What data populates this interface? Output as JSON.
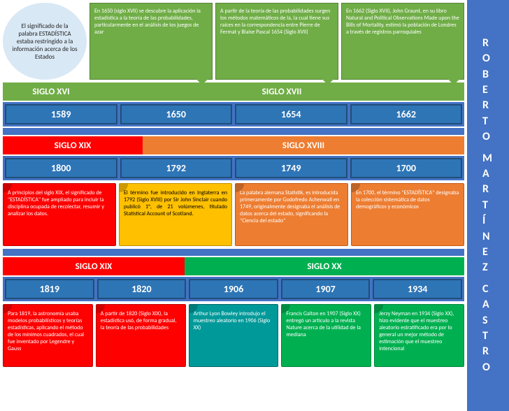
{
  "author": "ROBERTO MARTÍNEZ CASTRO",
  "circle_note": "El significado de la palabra ESTADÍSTICA estaba restringido a la información acerca de los Estados",
  "top_notes": [
    "En 1650 (siglo XVII) se descubre la aplicación la estadística a la teoría de las probabilidades, particularmente en el análisis de los juegos de azar",
    "A partir de la teoría de las probabilidades surgen los métodos matemáticos de la, la cual tiene sus raíces en la correspondencia entre Pierre de Fermat y Blaise Pascal 1654 (Siglo XVII)",
    "En 1662 (Siglo XVII), John Graunt, en su libro Natural and Political Observations Made upon the Bills of Mortality, estimó la población de Londres a través de registros parroquiales"
  ],
  "era1": {
    "left": "SIGLO XVI",
    "right": "SIGLO XVII",
    "left_color": "#70ad47",
    "right_color": "#70ad47"
  },
  "years1": [
    "1589",
    "1650",
    "1654",
    "1662"
  ],
  "era2": {
    "left": "SIGLO XIX",
    "right": "SIGLO XVIII",
    "left_color": "#ff0000",
    "right_color": "#ed7d31"
  },
  "years2": [
    "1800",
    "1792",
    "1749",
    "1700"
  ],
  "scrolls2": [
    {
      "cls": "red",
      "text": "A principios del siglo XIX, el significado de \"ESTADÍSTICA\" fue ampliado para incluir la disciplina ocupada de recolectar, resumir y analizar los datos."
    },
    {
      "cls": "yellow",
      "text": "El término fue introducido en Inglaterra en 1792 (Siglo XVIII) por Sir John Sinclair cuando publicó 1°, de 21 volúmenes, titulado Statistical Account of Scotland."
    },
    {
      "cls": "orange",
      "text": "La palabra alemana Statistik, es introducida primeramente por Godofredo Achenwall en 1749, originalmente designaba el análisis de datos acerca del estado, significando la \"Ciencia del estado\""
    },
    {
      "cls": "orange",
      "text": "En 1700, el término \"ESTADÍSTICA\" designaba la colección sistemática de datos demográficos y económicos"
    }
  ],
  "era3": {
    "left": "SIGLO XIX",
    "right": "SIGLO XX",
    "left_color": "#ff0000",
    "right_color": "#00b050"
  },
  "years3": [
    "1819",
    "1820",
    "1906",
    "1907",
    "1934"
  ],
  "scrolls3": [
    {
      "cls": "red",
      "text": "Para 1819, la astronomía usaba modelos probabilísticos y teorías estadísticas, aplicando el método de los mínimos cuadrados, el cual fue inventado por Legendre y Gauss"
    },
    {
      "cls": "red",
      "text": "A partir de 1820 (Siglo XIX), la estadística usó, de forma gradual, la teoría de las probabilidades"
    },
    {
      "cls": "teal",
      "text": "Arthur Lyon Bowley introdujo el muestreo aleatorio en 1906 (Siglo XX)"
    },
    {
      "cls": "green",
      "text": "Francis Galton en 1907 (Siglo XX) entregó un artículo a la revista Nature acerca de la utilidad de la mediana"
    },
    {
      "cls": "green",
      "text": "Jerzy Neyman en 1934 (Siglo XX), hizo evidente que el muestreo aleatorio estratificado era por lo general un mejor método de estimación que el muestreo intencional"
    }
  ],
  "colors": {
    "bar": "#4472c4",
    "year_bg": "#2e75b6"
  }
}
